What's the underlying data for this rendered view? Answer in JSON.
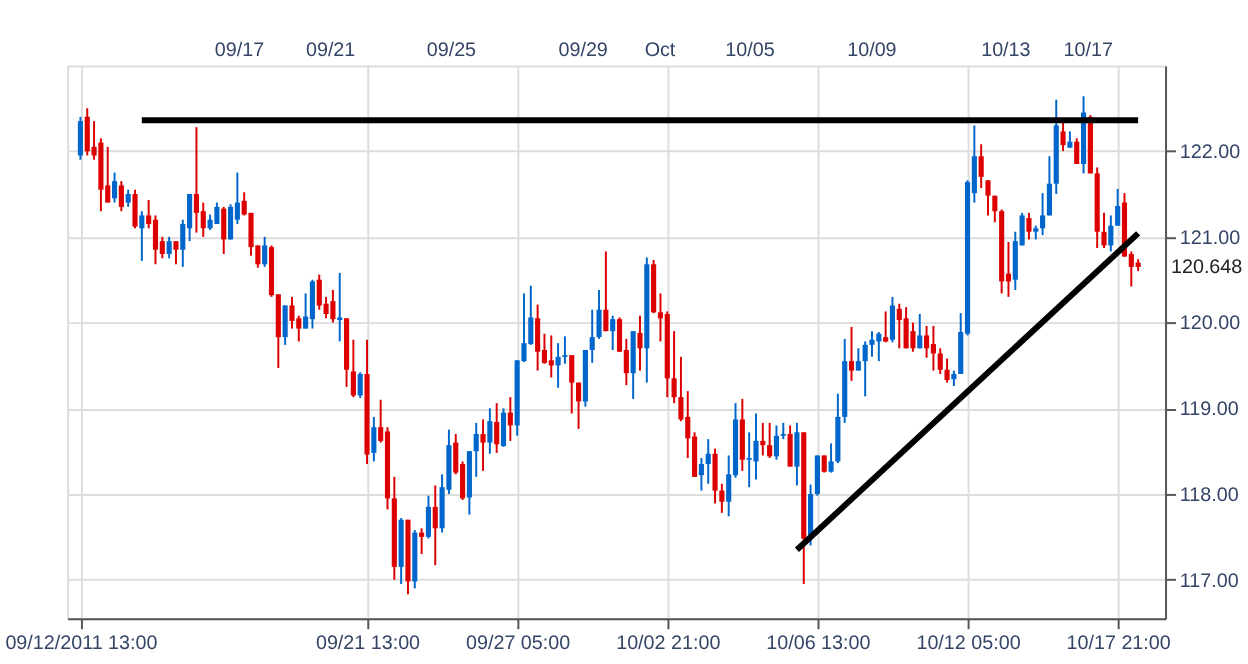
{
  "chart_data": {
    "type": "candlestick",
    "categories": [
      "09/12/2011 13:00",
      null,
      null,
      null,
      null,
      null,
      null,
      null,
      null,
      null,
      null,
      null,
      null,
      null,
      null,
      null,
      null,
      null,
      null,
      null,
      null,
      null,
      null,
      null,
      null,
      null,
      null,
      null,
      null,
      null,
      null,
      null,
      null,
      null,
      null,
      null,
      null,
      null,
      null,
      null,
      null,
      null,
      "09/21 13:00",
      null,
      null,
      null,
      null,
      null,
      null,
      null,
      null,
      null,
      null,
      null,
      null,
      null,
      null,
      null,
      null,
      null,
      null,
      null,
      null,
      null,
      "09/27 05:00",
      null,
      null,
      null,
      null,
      null,
      null,
      null,
      null,
      null,
      null,
      null,
      null,
      null,
      null,
      null,
      null,
      null,
      null,
      null,
      null,
      null,
      "10/02 21:00",
      null,
      null,
      null,
      null,
      null,
      null,
      null,
      null,
      null,
      null,
      null,
      null,
      null,
      null,
      null,
      null,
      null,
      null,
      null,
      null,
      null,
      "10/06 13:00",
      null,
      null,
      null,
      null,
      null,
      null,
      null,
      null,
      null,
      null,
      null,
      null,
      null,
      null,
      null,
      null,
      null,
      null,
      null,
      null,
      null,
      "10/12 05:00",
      null,
      null,
      null,
      null,
      null,
      null,
      null,
      null,
      null,
      null,
      null,
      null,
      null,
      null,
      null,
      null,
      null,
      null,
      null,
      null,
      null,
      "10/17 21:00",
      null,
      null,
      null
    ],
    "ohlc": [
      [
        121.95,
        122.4,
        121.9,
        122.35
      ],
      [
        122.4,
        122.5,
        121.95,
        122.0
      ],
      [
        122.05,
        122.35,
        121.9,
        121.95
      ],
      [
        122.1,
        122.15,
        121.3,
        121.55
      ],
      [
        121.6,
        122.05,
        121.4,
        121.4
      ],
      [
        121.45,
        121.75,
        121.4,
        121.65
      ],
      [
        121.6,
        121.65,
        121.3,
        121.35
      ],
      [
        121.4,
        121.55,
        121.35,
        121.5
      ],
      [
        121.5,
        121.55,
        121.1,
        121.12
      ],
      [
        121.1,
        121.3,
        120.72,
        121.25
      ],
      [
        121.25,
        121.43,
        121.1,
        121.15
      ],
      [
        121.2,
        121.25,
        120.68,
        120.85
      ],
      [
        120.95,
        121.0,
        120.75,
        120.8
      ],
      [
        120.8,
        121.0,
        120.75,
        120.95
      ],
      [
        120.95,
        120.95,
        120.68,
        120.85
      ],
      [
        120.85,
        121.2,
        120.65,
        121.15
      ],
      [
        121.1,
        121.5,
        120.95,
        121.5
      ],
      [
        121.5,
        122.28,
        121.05,
        121.28
      ],
      [
        121.3,
        121.4,
        121.0,
        121.1
      ],
      [
        121.1,
        121.26,
        121.08,
        121.2
      ],
      [
        121.15,
        121.4,
        121.15,
        121.35
      ],
      [
        121.33,
        121.35,
        120.8,
        120.97
      ],
      [
        120.97,
        121.38,
        120.97,
        121.35
      ],
      [
        121.2,
        121.75,
        121.15,
        121.4
      ],
      [
        121.42,
        121.52,
        121.25,
        121.26
      ],
      [
        121.28,
        121.28,
        120.78,
        120.88
      ],
      [
        120.9,
        120.9,
        120.64,
        120.68
      ],
      [
        120.68,
        121.0,
        120.65,
        120.9
      ],
      [
        120.88,
        120.9,
        120.3,
        120.32
      ],
      [
        120.33,
        120.33,
        119.47,
        119.83
      ],
      [
        119.83,
        120.2,
        119.74,
        120.2
      ],
      [
        120.2,
        120.3,
        119.93,
        120.02
      ],
      [
        120.05,
        120.08,
        119.78,
        119.93
      ],
      [
        119.93,
        120.34,
        119.93,
        120.07
      ],
      [
        120.04,
        120.5,
        119.93,
        120.48
      ],
      [
        120.5,
        120.56,
        120.15,
        120.2
      ],
      [
        120.22,
        120.3,
        120.05,
        120.1
      ],
      [
        120.25,
        120.38,
        120.0,
        120.04
      ],
      [
        120.03,
        120.58,
        119.78,
        120.06
      ],
      [
        120.05,
        120.05,
        119.25,
        119.45
      ],
      [
        119.43,
        119.8,
        119.13,
        119.15
      ],
      [
        119.15,
        119.42,
        119.12,
        119.4
      ],
      [
        119.4,
        119.8,
        118.35,
        118.46
      ],
      [
        118.48,
        118.9,
        118.38,
        118.78
      ],
      [
        118.78,
        119.1,
        118.6,
        118.62
      ],
      [
        118.73,
        118.78,
        117.82,
        117.95
      ],
      [
        117.95,
        118.2,
        117.0,
        117.15
      ],
      [
        117.15,
        117.72,
        116.95,
        117.7
      ],
      [
        117.7,
        117.7,
        116.83,
        116.98
      ],
      [
        116.98,
        117.58,
        116.9,
        117.55
      ],
      [
        117.55,
        117.6,
        117.3,
        117.5
      ],
      [
        117.5,
        117.98,
        117.48,
        117.85
      ],
      [
        117.85,
        118.1,
        117.17,
        117.6
      ],
      [
        117.6,
        118.23,
        117.55,
        118.08
      ],
      [
        118.05,
        118.75,
        118.0,
        118.57
      ],
      [
        118.6,
        118.7,
        118.23,
        118.25
      ],
      [
        118.35,
        118.38,
        117.93,
        117.95
      ],
      [
        117.96,
        118.5,
        117.76,
        118.5
      ],
      [
        118.5,
        118.83,
        118.2,
        118.7
      ],
      [
        118.7,
        118.87,
        118.27,
        118.6
      ],
      [
        118.6,
        119.0,
        118.47,
        118.85
      ],
      [
        118.84,
        119.06,
        118.48,
        118.58
      ],
      [
        118.56,
        119.0,
        118.55,
        118.95
      ],
      [
        118.95,
        119.13,
        118.62,
        118.8
      ],
      [
        118.8,
        119.56,
        118.68,
        119.56
      ],
      [
        119.55,
        120.34,
        119.54,
        119.76
      ],
      [
        119.75,
        120.43,
        119.74,
        120.06
      ],
      [
        120.05,
        120.21,
        119.44,
        119.66
      ],
      [
        119.68,
        119.87,
        119.52,
        119.53
      ],
      [
        119.56,
        119.85,
        119.36,
        119.5
      ],
      [
        119.5,
        119.76,
        119.24,
        119.6
      ],
      [
        119.6,
        119.84,
        119.52,
        119.62
      ],
      [
        119.62,
        119.62,
        118.94,
        119.3
      ],
      [
        119.3,
        119.3,
        118.76,
        119.08
      ],
      [
        119.08,
        119.68,
        119.02,
        119.68
      ],
      [
        119.68,
        120.15,
        119.53,
        119.83
      ],
      [
        119.83,
        120.38,
        119.81,
        120.15
      ],
      [
        120.15,
        120.83,
        119.9,
        119.9
      ],
      [
        119.9,
        120.08,
        119.68,
        120.04
      ],
      [
        120.04,
        120.06,
        119.66,
        119.66
      ],
      [
        119.68,
        119.81,
        119.27,
        119.41
      ],
      [
        119.41,
        119.9,
        119.11,
        119.9
      ],
      [
        119.88,
        120.08,
        119.44,
        119.7
      ],
      [
        119.7,
        120.76,
        119.3,
        120.68
      ],
      [
        120.68,
        120.73,
        120.11,
        120.12
      ],
      [
        120.12,
        120.34,
        119.78,
        120.05
      ],
      [
        120.1,
        120.13,
        119.13,
        119.35
      ],
      [
        119.35,
        119.9,
        119.06,
        119.13
      ],
      [
        119.13,
        119.6,
        118.85,
        118.87
      ],
      [
        118.9,
        119.2,
        118.42,
        118.65
      ],
      [
        118.67,
        118.72,
        118.2,
        118.2
      ],
      [
        118.22,
        118.42,
        118.04,
        118.35
      ],
      [
        118.35,
        118.64,
        118.12,
        118.47
      ],
      [
        118.47,
        118.53,
        117.89,
        118.04
      ],
      [
        118.04,
        118.12,
        117.78,
        117.91
      ],
      [
        117.91,
        118.45,
        117.74,
        118.23
      ],
      [
        118.22,
        119.06,
        118.19,
        118.87
      ],
      [
        118.87,
        119.11,
        118.27,
        118.4
      ],
      [
        118.4,
        118.72,
        118.08,
        118.42
      ],
      [
        118.38,
        118.94,
        118.17,
        118.62
      ],
      [
        118.62,
        118.83,
        118.45,
        118.57
      ],
      [
        118.57,
        118.83,
        118.42,
        118.44
      ],
      [
        118.44,
        118.8,
        118.4,
        118.68
      ],
      [
        118.68,
        118.83,
        118.64,
        118.7
      ],
      [
        118.7,
        118.8,
        118.32,
        118.32
      ],
      [
        118.32,
        118.83,
        118.1,
        118.72
      ],
      [
        118.72,
        118.72,
        116.95,
        117.48
      ],
      [
        117.48,
        118.11,
        117.4,
        118.0
      ],
      [
        118.0,
        118.45,
        117.98,
        118.45
      ],
      [
        118.45,
        118.45,
        118.25,
        118.26
      ],
      [
        118.26,
        118.59,
        118.25,
        118.38
      ],
      [
        118.38,
        119.17,
        118.36,
        118.9
      ],
      [
        118.9,
        119.81,
        118.83,
        119.55
      ],
      [
        119.55,
        119.95,
        119.32,
        119.44
      ],
      [
        119.44,
        119.7,
        119.44,
        119.55
      ],
      [
        119.55,
        119.78,
        119.14,
        119.74
      ],
      [
        119.74,
        119.9,
        119.6,
        119.8
      ],
      [
        119.78,
        119.89,
        119.55,
        119.87
      ],
      [
        119.83,
        120.13,
        119.77,
        119.78
      ],
      [
        119.8,
        120.3,
        119.77,
        120.2
      ],
      [
        120.16,
        120.22,
        119.7,
        120.03
      ],
      [
        120.05,
        120.18,
        119.7,
        119.7
      ],
      [
        119.9,
        120.0,
        119.66,
        119.7
      ],
      [
        119.7,
        120.1,
        119.7,
        119.85
      ],
      [
        119.85,
        119.96,
        119.59,
        119.7
      ],
      [
        119.75,
        119.96,
        119.44,
        119.64
      ],
      [
        119.64,
        119.7,
        119.4,
        119.45
      ],
      [
        119.45,
        119.58,
        119.3,
        119.33
      ],
      [
        119.34,
        119.44,
        119.26,
        119.4
      ],
      [
        119.4,
        120.11,
        119.4,
        119.89
      ],
      [
        119.87,
        121.66,
        119.85,
        121.64
      ],
      [
        121.51,
        122.3,
        121.4,
        121.94
      ],
      [
        121.94,
        122.08,
        121.57,
        121.7
      ],
      [
        121.66,
        121.66,
        121.25,
        121.48
      ],
      [
        121.48,
        121.48,
        121.17,
        121.3
      ],
      [
        121.3,
        121.32,
        120.34,
        120.48
      ],
      [
        120.57,
        120.94,
        120.3,
        120.48
      ],
      [
        120.5,
        121.06,
        120.38,
        120.95
      ],
      [
        120.9,
        121.28,
        120.9,
        121.25
      ],
      [
        121.22,
        121.28,
        120.97,
        121.06
      ],
      [
        121.06,
        121.13,
        120.97,
        121.1
      ],
      [
        121.1,
        121.51,
        121.02,
        121.25
      ],
      [
        121.25,
        121.94,
        121.25,
        121.62
      ],
      [
        121.62,
        122.6,
        121.5,
        122.3
      ],
      [
        122.23,
        122.34,
        122.0,
        122.07
      ],
      [
        122.04,
        122.23,
        122.04,
        122.11
      ],
      [
        122.11,
        122.15,
        121.85,
        121.85
      ],
      [
        121.85,
        122.64,
        121.74,
        122.45
      ],
      [
        122.4,
        122.42,
        121.74,
        121.74
      ],
      [
        121.74,
        121.81,
        120.87,
        121.06
      ],
      [
        121.06,
        121.28,
        120.87,
        120.9
      ],
      [
        120.9,
        121.25,
        120.83,
        121.13
      ],
      [
        121.13,
        121.56,
        121.13,
        121.36
      ],
      [
        121.4,
        121.51,
        120.77,
        120.77
      ],
      [
        120.8,
        120.83,
        120.42,
        120.65
      ],
      [
        120.7,
        120.74,
        120.6,
        120.648
      ]
    ],
    "colors": [
      "#0066cc",
      "#dd0000",
      "#dd0000",
      "#dd0000",
      "#dd0000",
      "#0066cc",
      "#dd0000",
      "#0066cc",
      "#dd0000",
      "#0066cc",
      "#dd0000",
      "#dd0000",
      "#dd0000",
      "#0066cc",
      "#dd0000",
      "#0066cc",
      "#0066cc",
      "#dd0000",
      "#dd0000",
      "#0066cc",
      "#0066cc",
      "#dd0000",
      "#0066cc",
      "#0066cc",
      "#dd0000",
      "#dd0000",
      "#dd0000",
      "#0066cc",
      "#dd0000",
      "#dd0000",
      "#0066cc",
      "#dd0000",
      "#dd0000",
      "#0066cc",
      "#0066cc",
      "#dd0000",
      "#dd0000",
      "#dd0000",
      "#0066cc",
      "#dd0000",
      "#dd0000",
      "#0066cc",
      "#dd0000",
      "#0066cc",
      "#dd0000",
      "#dd0000",
      "#dd0000",
      "#0066cc",
      "#dd0000",
      "#0066cc",
      "#dd0000",
      "#0066cc",
      "#dd0000",
      "#0066cc",
      "#0066cc",
      "#dd0000",
      "#dd0000",
      "#0066cc",
      "#0066cc",
      "#dd0000",
      "#0066cc",
      "#dd0000",
      "#0066cc",
      "#dd0000",
      "#0066cc",
      "#0066cc",
      "#0066cc",
      "#dd0000",
      "#dd0000",
      "#dd0000",
      "#0066cc",
      "#0066cc",
      "#dd0000",
      "#dd0000",
      "#0066cc",
      "#0066cc",
      "#0066cc",
      "#dd0000",
      "#0066cc",
      "#dd0000",
      "#dd0000",
      "#0066cc",
      "#dd0000",
      "#0066cc",
      "#dd0000",
      "#dd0000",
      "#dd0000",
      "#dd0000",
      "#dd0000",
      "#dd0000",
      "#dd0000",
      "#0066cc",
      "#0066cc",
      "#dd0000",
      "#dd0000",
      "#0066cc",
      "#0066cc",
      "#dd0000",
      "#0066cc",
      "#0066cc",
      "#dd0000",
      "#dd0000",
      "#0066cc",
      "#0066cc",
      "#dd0000",
      "#0066cc",
      "#dd0000",
      "#0066cc",
      "#0066cc",
      "#dd0000",
      "#0066cc",
      "#0066cc",
      "#0066cc",
      "#dd0000",
      "#0066cc",
      "#0066cc",
      "#0066cc",
      "#0066cc",
      "#dd0000",
      "#0066cc",
      "#dd0000",
      "#dd0000",
      "#dd0000",
      "#0066cc",
      "#dd0000",
      "#dd0000",
      "#dd0000",
      "#dd0000",
      "#0066cc",
      "#0066cc",
      "#0066cc",
      "#0066cc",
      "#dd0000",
      "#dd0000",
      "#dd0000",
      "#dd0000",
      "#dd0000",
      "#0066cc",
      "#0066cc",
      "#dd0000",
      "#0066cc",
      "#0066cc",
      "#0066cc",
      "#0066cc",
      "#dd0000",
      "#0066cc",
      "#dd0000",
      "#0066cc",
      "#dd0000",
      "#dd0000",
      "#dd0000",
      "#0066cc",
      "#0066cc",
      "#dd0000",
      "#dd0000",
      "#dd0000"
    ],
    "series": [
      {
        "type": "line",
        "color": "#000000",
        "values": [
          null,
          null,
          null,
          null,
          null,
          null,
          null,
          null,
          null,
          122.36,
          null,
          null,
          null,
          null,
          null,
          null,
          null,
          null,
          null,
          null,
          null,
          null,
          null,
          null,
          null,
          null,
          null,
          null,
          null,
          null,
          null,
          null,
          null,
          null,
          null,
          null,
          null,
          null,
          null,
          null,
          null,
          null,
          null,
          null,
          null,
          null,
          null,
          null,
          null,
          null,
          null,
          null,
          null,
          null,
          null,
          null,
          null,
          null,
          null,
          null,
          null,
          null,
          null,
          null,
          null,
          null,
          null,
          null,
          null,
          null,
          null,
          null,
          null,
          null,
          null,
          null,
          null,
          null,
          null,
          null,
          null,
          null,
          null,
          null,
          null,
          null,
          null,
          null,
          null,
          null,
          null,
          null,
          null,
          null,
          null,
          null,
          null,
          null,
          null,
          null,
          null,
          null,
          null,
          null,
          null,
          null,
          null,
          null,
          null,
          null,
          null,
          null,
          null,
          null,
          null,
          null,
          null,
          null,
          null,
          null,
          null,
          null,
          null,
          null,
          null,
          null,
          null,
          null,
          null,
          null,
          null,
          null,
          null,
          null,
          null,
          null,
          null,
          null,
          null,
          null,
          null,
          null,
          null,
          null,
          null,
          null,
          null,
          null,
          null,
          null,
          null,
          null,
          null,
          null,
          null,
          122.36
        ]
      },
      {
        "type": "line",
        "color": "#000000",
        "values": [
          null,
          null,
          null,
          null,
          null,
          null,
          null,
          null,
          null,
          null,
          null,
          null,
          null,
          null,
          null,
          null,
          null,
          null,
          null,
          null,
          null,
          null,
          null,
          null,
          null,
          null,
          null,
          null,
          null,
          null,
          null,
          null,
          null,
          null,
          null,
          null,
          null,
          null,
          null,
          null,
          null,
          null,
          null,
          null,
          null,
          null,
          null,
          null,
          null,
          null,
          null,
          null,
          null,
          null,
          null,
          null,
          null,
          null,
          null,
          null,
          null,
          null,
          null,
          null,
          null,
          null,
          null,
          null,
          null,
          null,
          null,
          null,
          null,
          null,
          null,
          null,
          null,
          null,
          null,
          null,
          null,
          null,
          null,
          null,
          null,
          null,
          null,
          null,
          null,
          null,
          null,
          null,
          null,
          null,
          null,
          null,
          null,
          null,
          null,
          null,
          null,
          null,
          null,
          null,
          null,
          117.35,
          null,
          null,
          null,
          null,
          null,
          null,
          null,
          null,
          null,
          null,
          null,
          null,
          null,
          null,
          null,
          null,
          null,
          null,
          null,
          null,
          null,
          null,
          null,
          null,
          null,
          null,
          null,
          null,
          null,
          null,
          null,
          null,
          null,
          null,
          null,
          null,
          null,
          null,
          null,
          null,
          null,
          null,
          null,
          null,
          null,
          null,
          null,
          null,
          null,
          121.04
        ]
      }
    ],
    "ylim": [
      116.55,
      123.0
    ],
    "yticks": [
      {
        "value": 117,
        "label": "117.00"
      },
      {
        "value": 118,
        "label": "118.00"
      },
      {
        "value": 119,
        "label": "119.00"
      },
      {
        "value": 120,
        "label": "120.00"
      },
      {
        "value": 121,
        "label": "121.00"
      },
      {
        "value": 122,
        "label": "122.00"
      }
    ],
    "grid": true,
    "annotations": [
      "09/17",
      "09/21",
      "09/25",
      "09/29",
      "Oct",
      "10/05",
      "10/09",
      "10/13",
      "10/17",
      "120.648"
    ]
  }
}
